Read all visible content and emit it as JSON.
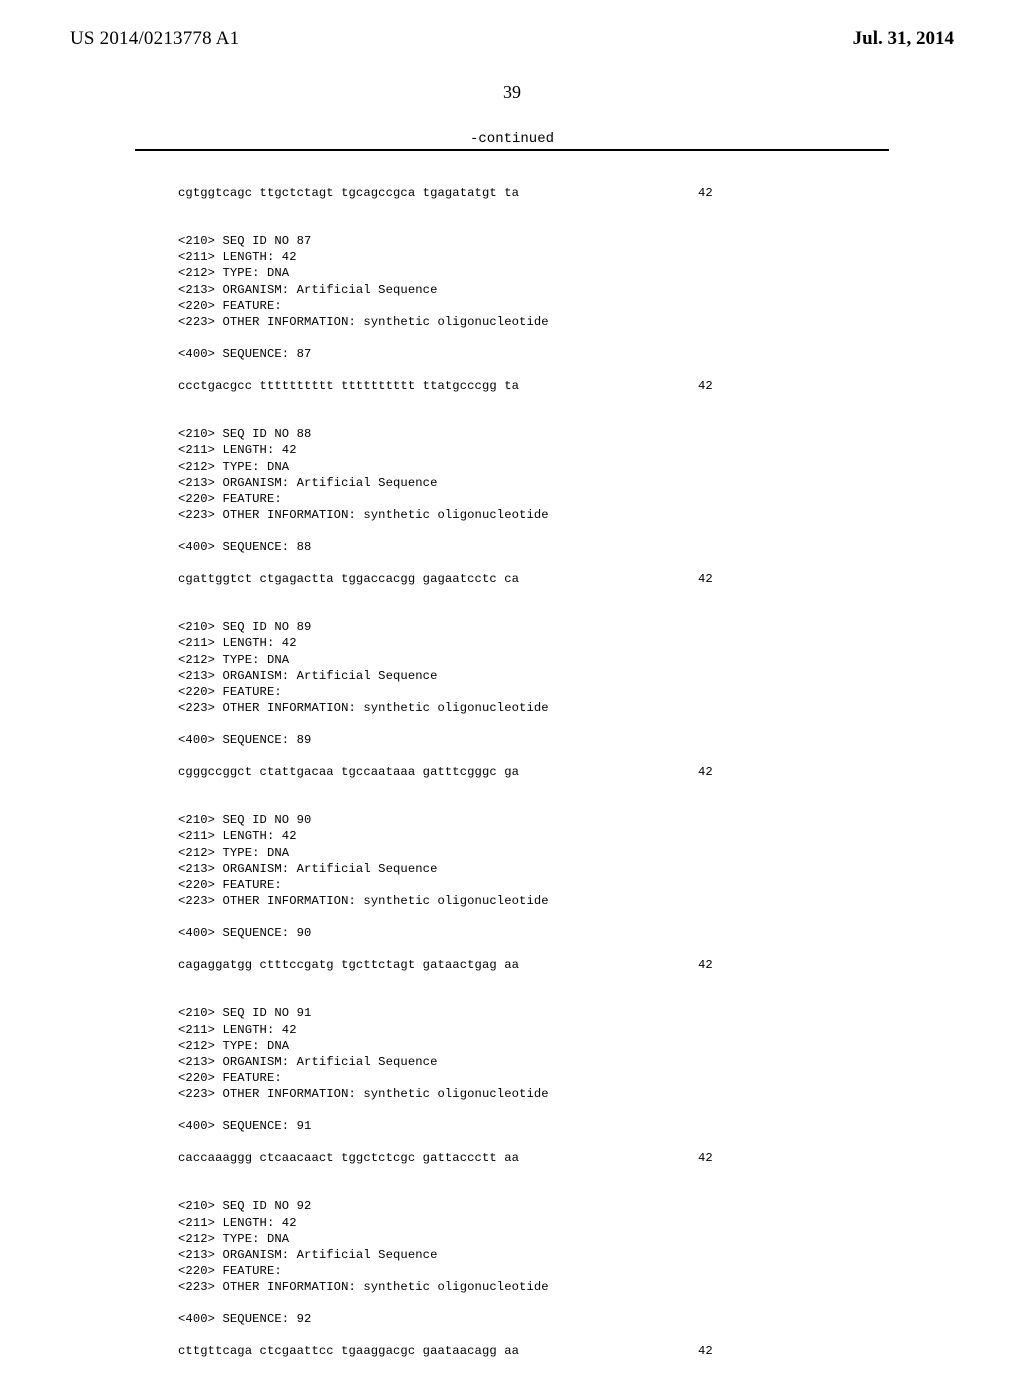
{
  "header": {
    "pub_number": "US 2014/0213778 A1",
    "pub_date": "Jul. 31, 2014"
  },
  "page_number": "39",
  "continued_label": "-continued",
  "entries": [
    {
      "sequence": "cgtggtcagc ttgctctagt tgcagccgca tgagatatgt ta",
      "length": "42"
    },
    {
      "header": [
        "<210> SEQ ID NO 87",
        "<211> LENGTH: 42",
        "<212> TYPE: DNA",
        "<213> ORGANISM: Artificial Sequence",
        "<220> FEATURE:",
        "<223> OTHER INFORMATION: synthetic oligonucleotide"
      ],
      "seq_label": "<400> SEQUENCE: 87",
      "sequence": "ccctgacgcc tttttttttt tttttttttt ttatgcccgg ta",
      "length": "42"
    },
    {
      "header": [
        "<210> SEQ ID NO 88",
        "<211> LENGTH: 42",
        "<212> TYPE: DNA",
        "<213> ORGANISM: Artificial Sequence",
        "<220> FEATURE:",
        "<223> OTHER INFORMATION: synthetic oligonucleotide"
      ],
      "seq_label": "<400> SEQUENCE: 88",
      "sequence": "cgattggtct ctgagactta tggaccacgg gagaatcctc ca",
      "length": "42"
    },
    {
      "header": [
        "<210> SEQ ID NO 89",
        "<211> LENGTH: 42",
        "<212> TYPE: DNA",
        "<213> ORGANISM: Artificial Sequence",
        "<220> FEATURE:",
        "<223> OTHER INFORMATION: synthetic oligonucleotide"
      ],
      "seq_label": "<400> SEQUENCE: 89",
      "sequence": "cgggccggct ctattgacaa tgccaataaa gatttcgggc ga",
      "length": "42"
    },
    {
      "header": [
        "<210> SEQ ID NO 90",
        "<211> LENGTH: 42",
        "<212> TYPE: DNA",
        "<213> ORGANISM: Artificial Sequence",
        "<220> FEATURE:",
        "<223> OTHER INFORMATION: synthetic oligonucleotide"
      ],
      "seq_label": "<400> SEQUENCE: 90",
      "sequence": "cagaggatgg ctttccgatg tgcttctagt gataactgag aa",
      "length": "42"
    },
    {
      "header": [
        "<210> SEQ ID NO 91",
        "<211> LENGTH: 42",
        "<212> TYPE: DNA",
        "<213> ORGANISM: Artificial Sequence",
        "<220> FEATURE:",
        "<223> OTHER INFORMATION: synthetic oligonucleotide"
      ],
      "seq_label": "<400> SEQUENCE: 91",
      "sequence": "caccaaaggg ctcaacaact tggctctcgc gattaccctt aa",
      "length": "42"
    },
    {
      "header": [
        "<210> SEQ ID NO 92",
        "<211> LENGTH: 42",
        "<212> TYPE: DNA",
        "<213> ORGANISM: Artificial Sequence",
        "<220> FEATURE:",
        "<223> OTHER INFORMATION: synthetic oligonucleotide"
      ],
      "seq_label": "<400> SEQUENCE: 92",
      "sequence": "cttgttcaga ctcgaattcc tgaaggacgc gaataacagg aa",
      "length": "42"
    }
  ]
}
